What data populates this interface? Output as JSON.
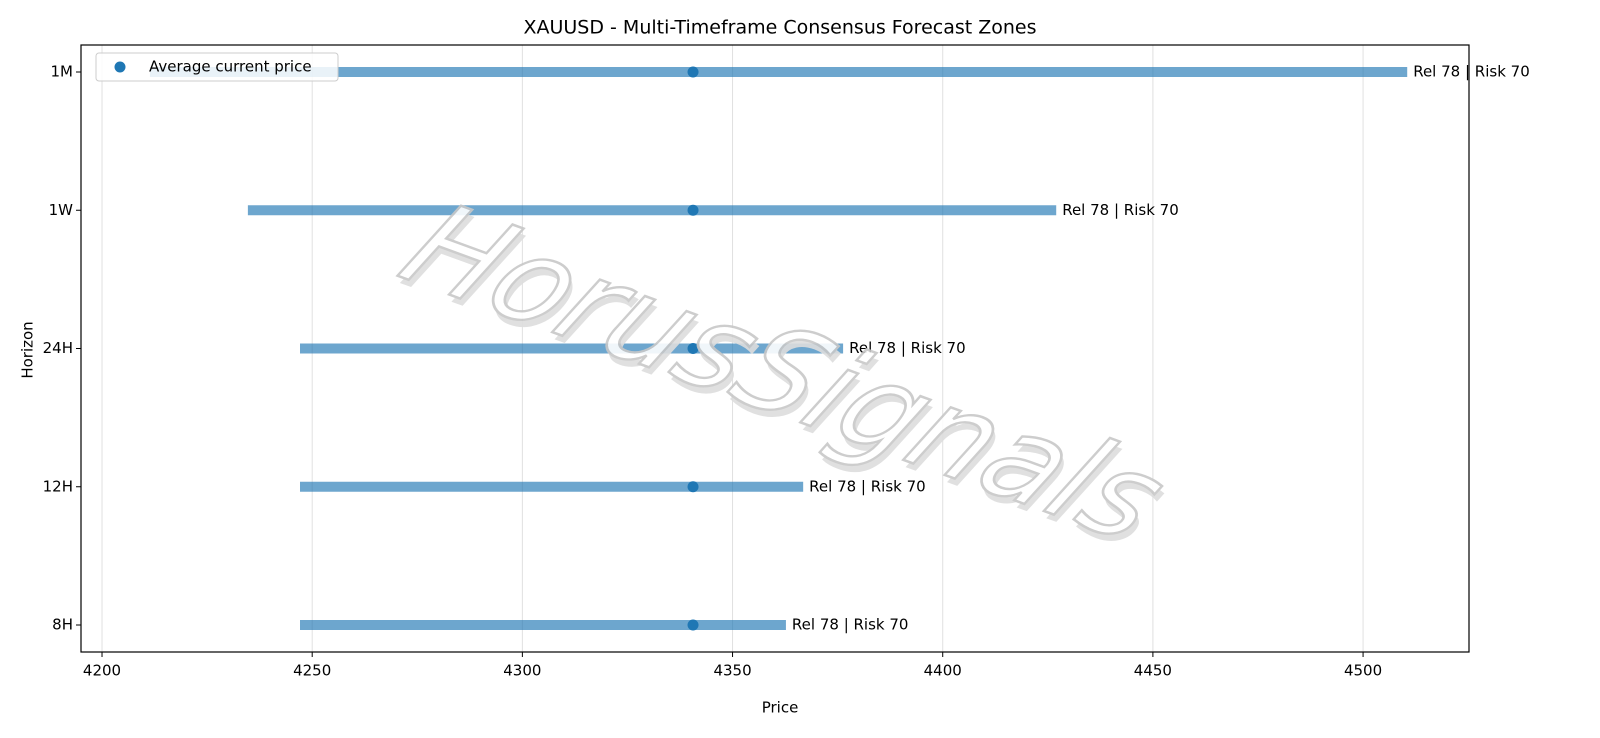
{
  "chart_data": {
    "type": "range",
    "title": "XAUUSD - Multi-Timeframe Consensus Forecast Zones",
    "x_label": "Price",
    "y_label": "Horizon",
    "watermark": "HorusSignals",
    "categories": [
      "1M",
      "1W",
      "24H",
      "12H",
      "8H"
    ],
    "low": [
      4211.4,
      4234.7,
      4247.1,
      4247.1,
      4247.1
    ],
    "high": [
      4510.5,
      4427.0,
      4376.3,
      4366.8,
      4362.7
    ],
    "color": "#1f77b4",
    "annotations": [
      "Rel 78 | Risk 70",
      "Rel 78 | Risk 70",
      "Rel 78 | Risk 70",
      "Rel 78 | Risk 70",
      "Rel 78 | Risk 70"
    ],
    "markers": {
      "name": "Average current price",
      "color": "#1f77b4",
      "values": [
        4340.6,
        4340.6,
        4340.6,
        4340.6,
        4340.6
      ]
    },
    "xlim": [
      4195,
      4525.2
    ],
    "xticks": [
      4200,
      4250,
      4300,
      4350,
      4400,
      4450,
      4500
    ],
    "grid": true,
    "legend": "upper-left"
  }
}
